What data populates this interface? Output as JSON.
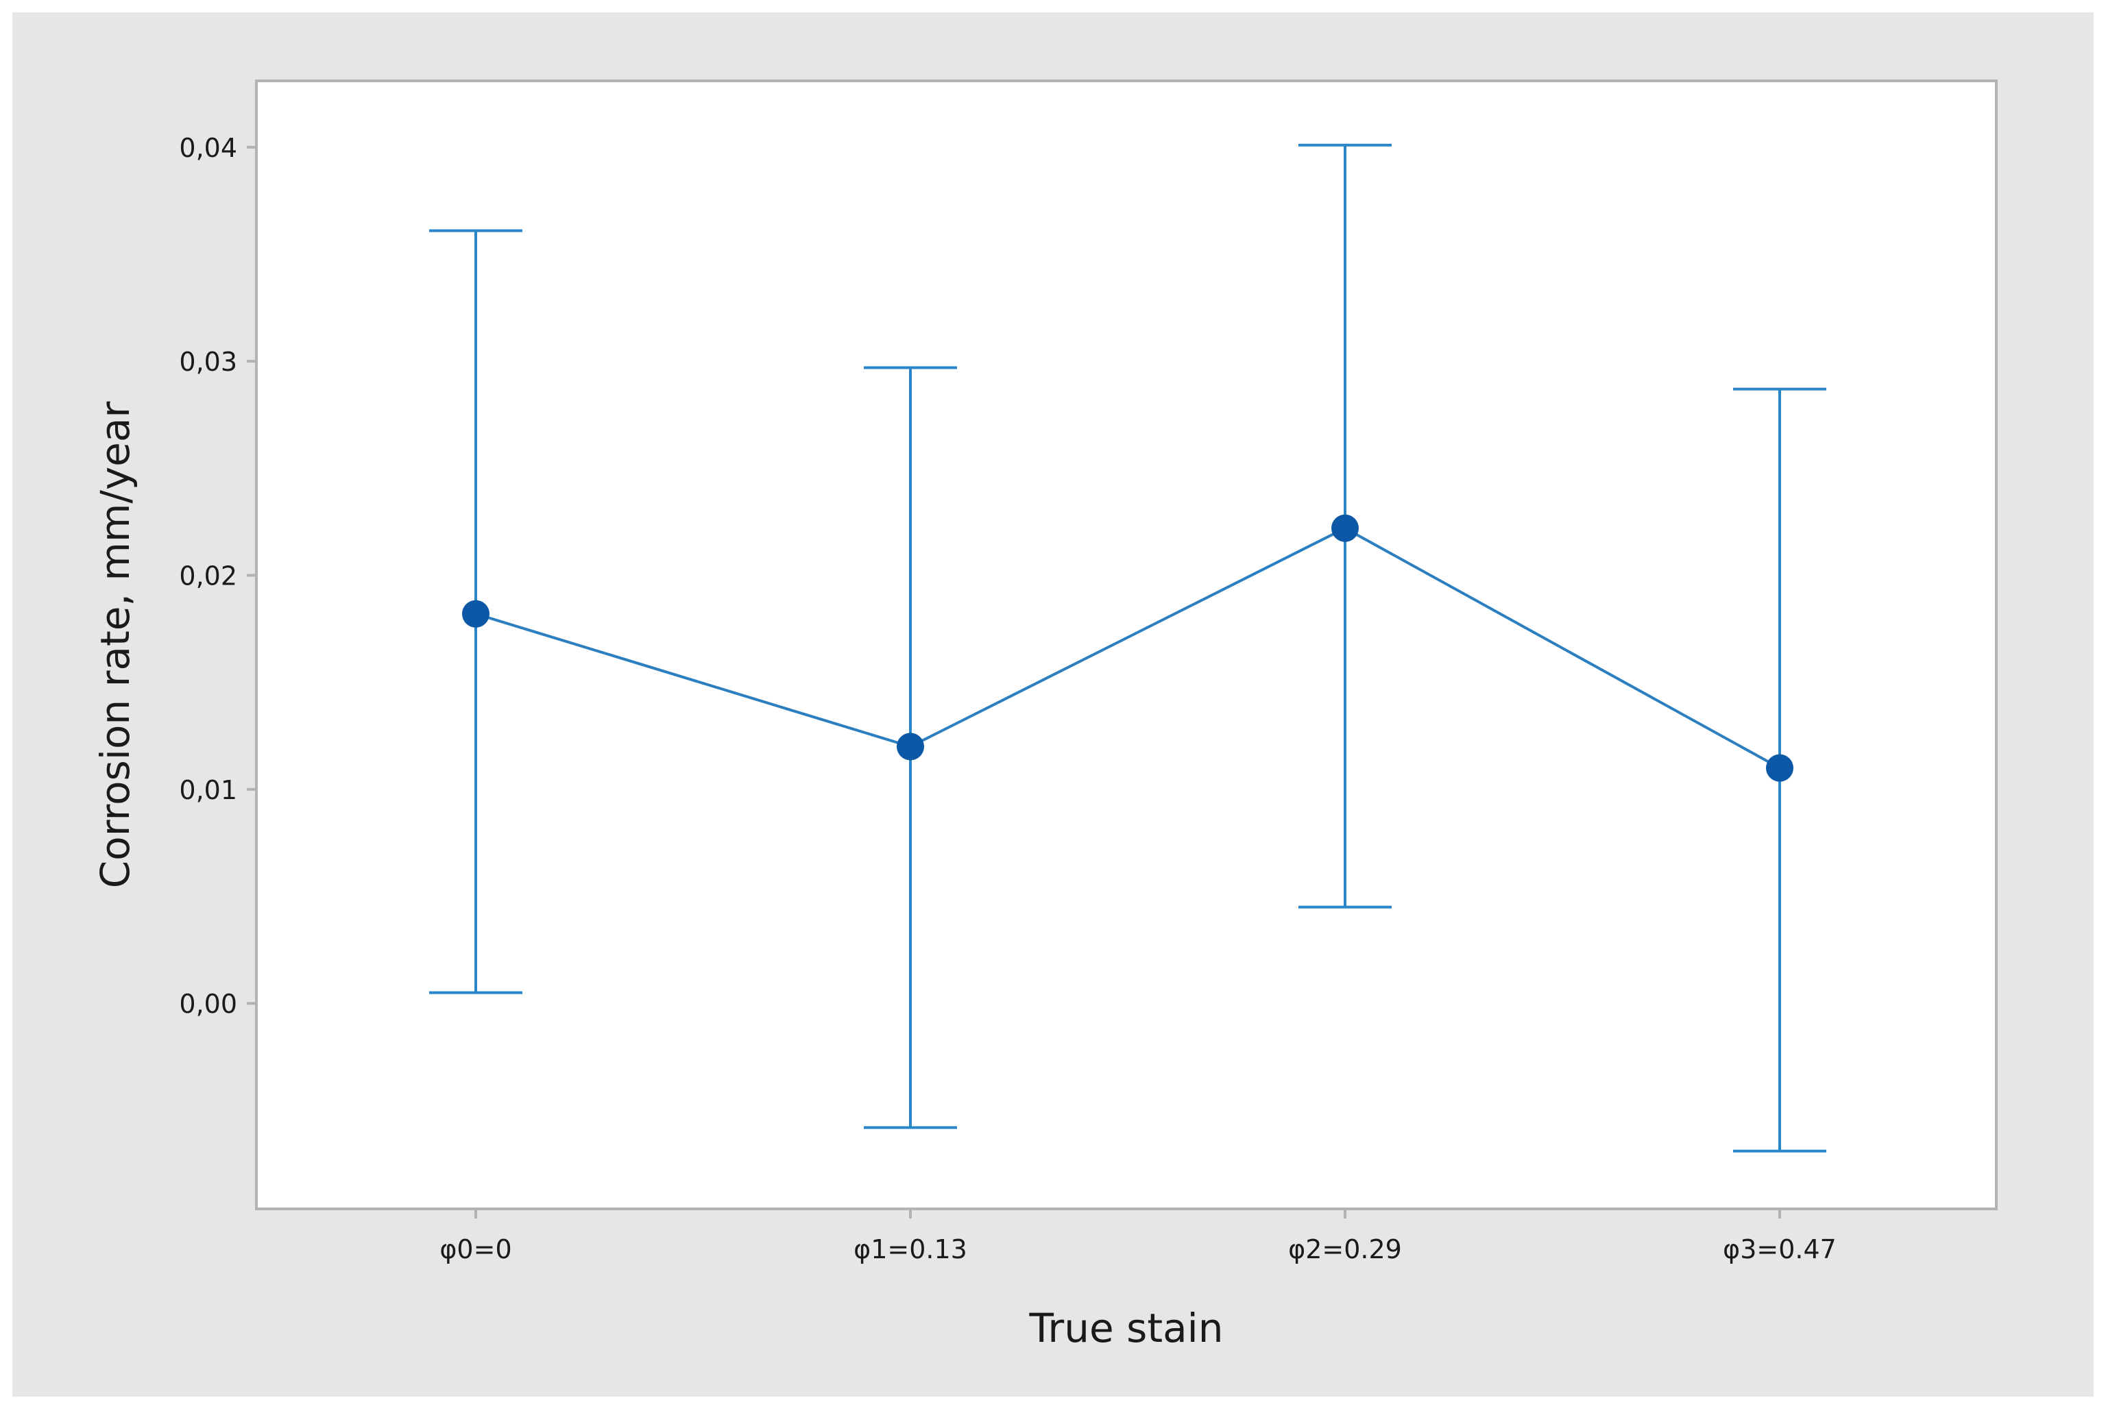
{
  "chart_data": {
    "type": "line",
    "error_bars": true,
    "title": "",
    "xlabel": "True stain",
    "ylabel": "Corrosion rate, mm/year",
    "categories": [
      "φ0=0",
      "φ1=0.13",
      "φ2=0.29",
      "φ3=0.47"
    ],
    "series": [
      {
        "values": [
          0.0182,
          0.012,
          0.0222,
          0.011
        ],
        "lower": [
          0.0005,
          -0.0058,
          0.0045,
          -0.0069
        ],
        "upper": [
          0.0361,
          0.0297,
          0.0401,
          0.0287
        ]
      }
    ],
    "yticks": [
      0.0,
      0.01,
      0.02,
      0.03,
      0.04
    ],
    "ytick_labels": [
      "0,00",
      "0,01",
      "0,02",
      "0,03",
      "0,04"
    ],
    "ylim": [
      -0.0096,
      0.0431
    ],
    "grid": false,
    "legend": "none",
    "colors": {
      "figure_background": "#e6e6e6",
      "plot_background": "#ffffff",
      "axis_frame": "#b3b3b3",
      "error_bar": "#2b86c9",
      "line": "#2b7fc0",
      "marker": "#0d57a7"
    }
  }
}
